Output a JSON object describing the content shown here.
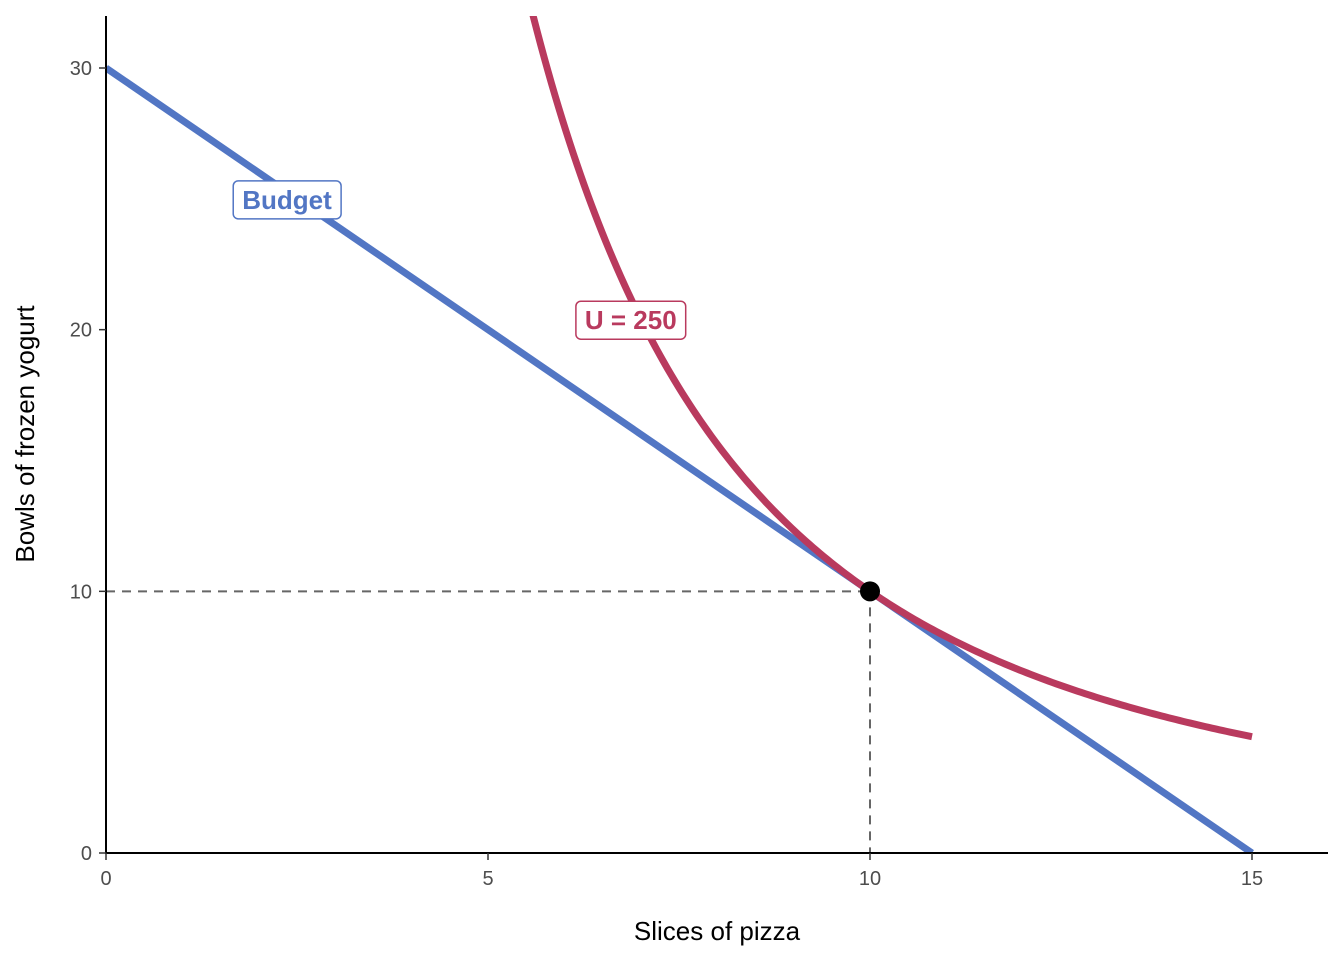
{
  "chart_data": {
    "type": "line",
    "xlabel": "Slices of pizza",
    "ylabel": "Bowls of frozen yogurt",
    "xlim": [
      0,
      16
    ],
    "ylim": [
      0,
      32
    ],
    "x_ticks": [
      0,
      5,
      10,
      15
    ],
    "y_ticks": [
      0,
      10,
      20,
      30
    ],
    "grid": false,
    "series": [
      {
        "name": "Budget",
        "kind": "budget-line",
        "color": "#5276c4",
        "x": [
          0,
          15
        ],
        "y": [
          30,
          0
        ]
      },
      {
        "name": "U = 250",
        "kind": "indifference-curve",
        "color": "#b93a5e",
        "x": [
          5.5,
          6,
          6.5,
          7,
          7.5,
          8,
          8.5,
          9,
          9.5,
          10,
          10.5,
          11,
          11.5,
          12,
          12.5,
          13,
          13.5,
          14,
          14.5,
          15
        ],
        "y": [
          33.06,
          27.78,
          23.67,
          20.41,
          17.78,
          15.63,
          13.84,
          12.35,
          11.08,
          10.0,
          9.07,
          8.26,
          7.56,
          6.94,
          6.4,
          5.92,
          5.49,
          5.1,
          4.76,
          4.44
        ]
      }
    ],
    "annotations": [
      {
        "type": "point",
        "x": 10,
        "y": 10,
        "color": "#000000"
      },
      {
        "type": "guide",
        "style": "dashed",
        "x": 10,
        "y": 10,
        "color": "#666666"
      },
      {
        "type": "label",
        "text": "Budget",
        "x": 2.5,
        "y": 25,
        "color": "#5276c4"
      },
      {
        "type": "label",
        "text": "U = 250",
        "x": 7,
        "y": 20.4,
        "color": "#b93a5e"
      }
    ]
  }
}
